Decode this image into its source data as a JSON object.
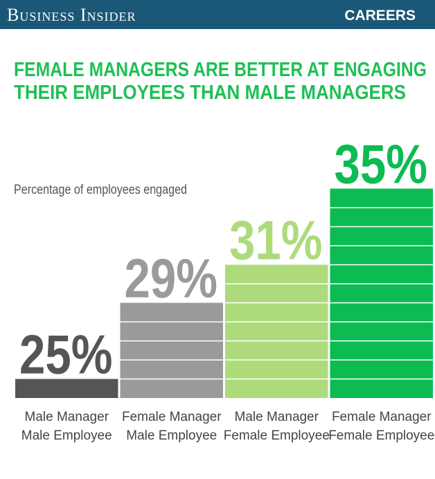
{
  "header": {
    "brand": "Business Insider",
    "section": "CAREERS"
  },
  "chart_data": {
    "type": "bar",
    "title": [
      "FEMALE MANAGERS ARE BETTER AT ENGAGING",
      "THEIR EMPLOYEES THAN MALE MANAGERS"
    ],
    "subtitle": "Percentage of employees engaged",
    "categories": [
      [
        "Male Manager",
        "Male Employee"
      ],
      [
        "Female Manager",
        "Male Employee"
      ],
      [
        "Male Manager",
        "Female Employee"
      ],
      [
        "Female Manager",
        "Female Employee"
      ]
    ],
    "values": [
      25,
      29,
      31,
      35
    ],
    "value_labels": [
      "25%",
      "29%",
      "31%",
      "35%"
    ],
    "colors": [
      "#555555",
      "#9a9a9a",
      "#addb7c",
      "#0cbb52"
    ],
    "ylim": [
      24,
      36
    ]
  }
}
